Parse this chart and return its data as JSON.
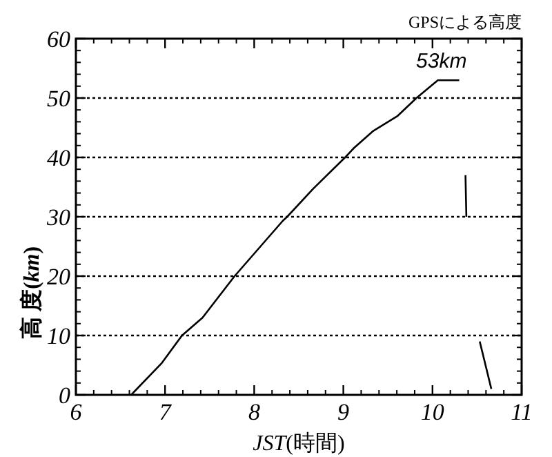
{
  "chart_data": {
    "type": "line",
    "title": "GPSによる高度",
    "xlabel": "*JST*(時間)",
    "ylabel": "高 度(*km*)",
    "xlim": [
      6,
      11
    ],
    "ylim": [
      0,
      60
    ],
    "xticks": [
      6,
      7,
      8,
      9,
      10,
      11
    ],
    "yticks": [
      0,
      10,
      20,
      30,
      40,
      50,
      60
    ],
    "grid": "y",
    "line_style": "solid",
    "annotations": [
      {
        "text": "53km",
        "x": 10.1,
        "y": 53
      }
    ],
    "series": [
      {
        "color": "#000000",
        "x": [
          6.62,
          6.96,
          7.19,
          7.42,
          7.78,
          8.32,
          8.37,
          8.66,
          9.02,
          9.12,
          9.33,
          9.61,
          9.82,
          10.06,
          10.3
        ],
        "values": [
          0,
          5.3,
          10,
          13,
          20,
          29.3,
          30,
          34.7,
          40,
          41.6,
          44.4,
          47,
          50,
          53,
          53
        ]
      },
      {
        "color": "#000000",
        "x": [
          10.37,
          10.38
        ],
        "values": [
          37,
          30
        ]
      },
      {
        "color": "#000000",
        "x": [
          10.53,
          10.66
        ],
        "values": [
          9,
          1
        ]
      }
    ]
  }
}
